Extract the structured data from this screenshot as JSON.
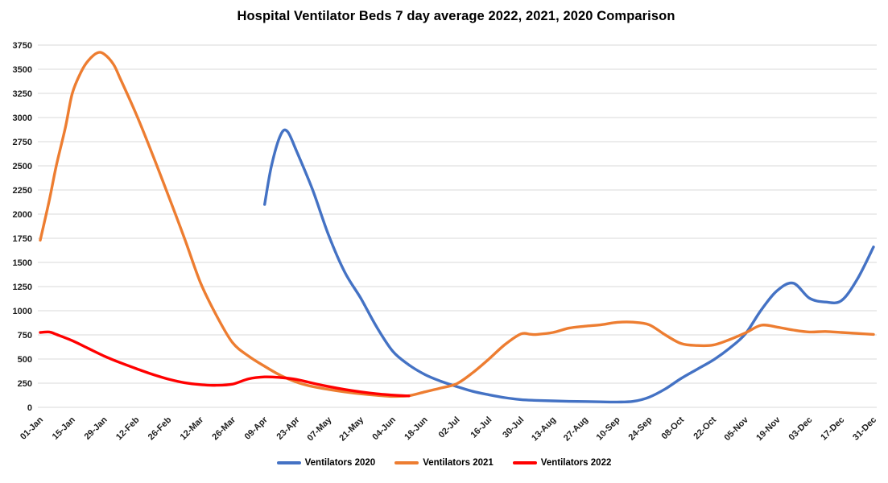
{
  "title": "Hospital Ventilator Beds 7 day average 2022, 2021, 2020 Comparison",
  "chart_data": {
    "type": "line",
    "title": "Hospital Ventilator Beds 7 day average 2022, 2021, 2020 Comparison",
    "background": "#ffffff",
    "gridline_color": "#d9d9d9",
    "grid": "horizontal",
    "legend_position": "bottom",
    "x_axis": {
      "tick_labels": [
        "01-Jan",
        "15-Jan",
        "29-Jan",
        "12-Feb",
        "26-Feb",
        "12-Mar",
        "26-Mar",
        "09-Apr",
        "23-Apr",
        "07-May",
        "21-May",
        "04-Jun",
        "18-Jun",
        "02-Jul",
        "16-Jul",
        "30-Jul",
        "13-Aug",
        "27-Aug",
        "10-Sep",
        "24-Sep",
        "08-Oct",
        "22-Oct",
        "05-Nov",
        "19-Nov",
        "03-Dec",
        "17-Dec",
        "31-Dec"
      ]
    },
    "y_axis": {
      "min": 0,
      "max": 3750,
      "tick_step": 250,
      "tick_labels": [
        "0",
        "250",
        "500",
        "750",
        "1000",
        "1250",
        "1500",
        "1750",
        "2000",
        "2250",
        "2500",
        "2750",
        "3000",
        "3250",
        "3500",
        "3750"
      ]
    },
    "series": [
      {
        "name": "Ventilators 2020",
        "color": "#4472C4",
        "points": [
          [
            "09-Apr",
            2100
          ],
          [
            "12-Apr",
            2500
          ],
          [
            "16-Apr",
            2820
          ],
          [
            "19-Apr",
            2855
          ],
          [
            "23-Apr",
            2650
          ],
          [
            "30-Apr",
            2250
          ],
          [
            "07-May",
            1780
          ],
          [
            "14-May",
            1400
          ],
          [
            "21-May",
            1130
          ],
          [
            "28-May",
            830
          ],
          [
            "04-Jun",
            580
          ],
          [
            "11-Jun",
            440
          ],
          [
            "18-Jun",
            340
          ],
          [
            "25-Jun",
            270
          ],
          [
            "02-Jul",
            215
          ],
          [
            "09-Jul",
            165
          ],
          [
            "16-Jul",
            130
          ],
          [
            "23-Jul",
            100
          ],
          [
            "30-Jul",
            80
          ],
          [
            "06-Aug",
            72
          ],
          [
            "13-Aug",
            67
          ],
          [
            "20-Aug",
            62
          ],
          [
            "27-Aug",
            60
          ],
          [
            "03-Sep",
            57
          ],
          [
            "10-Sep",
            55
          ],
          [
            "17-Sep",
            62
          ],
          [
            "24-Sep",
            105
          ],
          [
            "01-Oct",
            190
          ],
          [
            "08-Oct",
            300
          ],
          [
            "15-Oct",
            395
          ],
          [
            "22-Oct",
            490
          ],
          [
            "29-Oct",
            610
          ],
          [
            "05-Nov",
            760
          ],
          [
            "12-Nov",
            1010
          ],
          [
            "19-Nov",
            1210
          ],
          [
            "26-Nov",
            1285
          ],
          [
            "03-Dec",
            1130
          ],
          [
            "10-Dec",
            1090
          ],
          [
            "17-Dec",
            1105
          ],
          [
            "24-Dec",
            1330
          ],
          [
            "31-Dec",
            1660
          ]
        ]
      },
      {
        "name": "Ventilators 2021",
        "color": "#ED7D31",
        "points": [
          [
            "01-Jan",
            1730
          ],
          [
            "05-Jan",
            2150
          ],
          [
            "08-Jan",
            2500
          ],
          [
            "12-Jan",
            2900
          ],
          [
            "15-Jan",
            3250
          ],
          [
            "19-Jan",
            3480
          ],
          [
            "22-Jan",
            3590
          ],
          [
            "26-Jan",
            3670
          ],
          [
            "29-Jan",
            3655
          ],
          [
            "02-Feb",
            3550
          ],
          [
            "05-Feb",
            3400
          ],
          [
            "12-Feb",
            3030
          ],
          [
            "19-Feb",
            2620
          ],
          [
            "26-Feb",
            2190
          ],
          [
            "05-Mar",
            1750
          ],
          [
            "12-Mar",
            1290
          ],
          [
            "19-Mar",
            950
          ],
          [
            "26-Mar",
            670
          ],
          [
            "02-Apr",
            530
          ],
          [
            "09-Apr",
            425
          ],
          [
            "16-Apr",
            330
          ],
          [
            "23-Apr",
            260
          ],
          [
            "30-Apr",
            215
          ],
          [
            "07-May",
            185
          ],
          [
            "14-May",
            160
          ],
          [
            "21-May",
            140
          ],
          [
            "28-May",
            125
          ],
          [
            "04-Jun",
            113
          ],
          [
            "11-Jun",
            120
          ],
          [
            "18-Jun",
            160
          ],
          [
            "25-Jun",
            200
          ],
          [
            "02-Jul",
            245
          ],
          [
            "09-Jul",
            360
          ],
          [
            "16-Jul",
            500
          ],
          [
            "23-Jul",
            650
          ],
          [
            "30-Jul",
            760
          ],
          [
            "03-Aug",
            757
          ],
          [
            "06-Aug",
            755
          ],
          [
            "13-Aug",
            775
          ],
          [
            "20-Aug",
            820
          ],
          [
            "27-Aug",
            840
          ],
          [
            "03-Sep",
            855
          ],
          [
            "10-Sep",
            880
          ],
          [
            "17-Sep",
            882
          ],
          [
            "24-Sep",
            855
          ],
          [
            "01-Oct",
            750
          ],
          [
            "08-Oct",
            660
          ],
          [
            "15-Oct",
            640
          ],
          [
            "22-Oct",
            645
          ],
          [
            "29-Oct",
            700
          ],
          [
            "05-Nov",
            770
          ],
          [
            "12-Nov",
            850
          ],
          [
            "19-Nov",
            830
          ],
          [
            "26-Nov",
            800
          ],
          [
            "03-Dec",
            780
          ],
          [
            "10-Dec",
            785
          ],
          [
            "17-Dec",
            775
          ],
          [
            "24-Dec",
            765
          ],
          [
            "31-Dec",
            755
          ]
        ]
      },
      {
        "name": "Ventilators 2022",
        "color": "#FF0000",
        "points": [
          [
            "01-Jan",
            775
          ],
          [
            "05-Jan",
            780
          ],
          [
            "08-Jan",
            755
          ],
          [
            "15-Jan",
            690
          ],
          [
            "22-Jan",
            610
          ],
          [
            "29-Jan",
            530
          ],
          [
            "05-Feb",
            462
          ],
          [
            "12-Feb",
            400
          ],
          [
            "19-Feb",
            342
          ],
          [
            "26-Feb",
            292
          ],
          [
            "05-Mar",
            255
          ],
          [
            "12-Mar",
            235
          ],
          [
            "19-Mar",
            228
          ],
          [
            "26-Mar",
            240
          ],
          [
            "02-Apr",
            295
          ],
          [
            "09-Apr",
            315
          ],
          [
            "16-Apr",
            308
          ],
          [
            "23-Apr",
            288
          ],
          [
            "30-Apr",
            250
          ],
          [
            "07-May",
            215
          ],
          [
            "14-May",
            185
          ],
          [
            "21-May",
            160
          ],
          [
            "28-May",
            140
          ],
          [
            "04-Jun",
            127
          ],
          [
            "11-Jun",
            118
          ]
        ]
      }
    ]
  }
}
